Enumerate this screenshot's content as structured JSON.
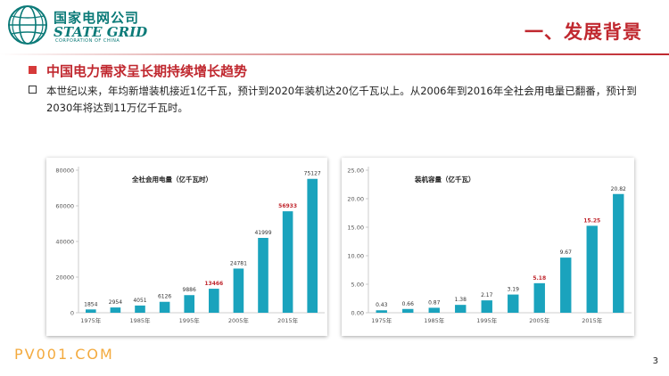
{
  "header": {
    "logo": {
      "cn": "国家电网公司",
      "en": "STATE GRID",
      "sub": "CORPORATION OF CHINA"
    },
    "title": "一、发展背景"
  },
  "section_title": "中国电力需求呈长期持续增长趋势",
  "bullet_text": "本世纪以来，年均新增装机接近1亿千瓦，预计到2020年装机达20亿千瓦以上。从2006年到2016年全社会用电量已翻番，预计到2030年将达到11万亿千瓦时。",
  "colors": {
    "bar": "#1aa3bd",
    "highlight_label": "#c0282f",
    "accent": "#c0282f",
    "brand": "#0b7a78"
  },
  "chart_data": [
    {
      "type": "bar",
      "title": "全社会用电量（亿千瓦时）",
      "categories": [
        "1975年",
        "1980年",
        "1985年",
        "1990年",
        "1995年",
        "2000年",
        "2005年",
        "2010年",
        "2015年",
        "2020年"
      ],
      "tick_labels_shown": [
        "1975年",
        "1985年",
        "1995年",
        "2005年",
        "2015年"
      ],
      "values": [
        1854,
        2954,
        4051,
        6126,
        9886,
        13466,
        24781,
        41999,
        56933,
        75127
      ],
      "data_labels": [
        "1854",
        "2954",
        "4051",
        "6126",
        "9886",
        "13466",
        "24781",
        "41999",
        "56933",
        "75127"
      ],
      "highlighted_labels": [
        5,
        8
      ],
      "ylim": [
        0,
        80000
      ],
      "yticks": [
        0,
        20000,
        40000,
        60000,
        80000
      ],
      "ytick_labels": [
        "0",
        "20000",
        "40000",
        "60000",
        "80000"
      ],
      "grid": false,
      "legend": "none"
    },
    {
      "type": "bar",
      "title": "装机容量（亿千瓦）",
      "categories": [
        "1975年",
        "1980年",
        "1985年",
        "1990年",
        "1995年",
        "2000年",
        "2005年",
        "2010年",
        "2015年",
        "2020年"
      ],
      "tick_labels_shown": [
        "1975年",
        "1985年",
        "1995年",
        "2005年",
        "2015年"
      ],
      "values": [
        0.43,
        0.66,
        0.87,
        1.38,
        2.17,
        3.19,
        5.18,
        9.67,
        15.25,
        20.82
      ],
      "data_labels": [
        "0.43",
        "0.66",
        "0.87",
        "1.38",
        "2.17",
        "3.19",
        "5.18",
        "9.67",
        "15.25",
        "20.82"
      ],
      "highlighted_labels": [
        6,
        8
      ],
      "ylim": [
        0,
        25
      ],
      "yticks": [
        0,
        5,
        10,
        15,
        20,
        25
      ],
      "ytick_labels": [
        "0.00",
        "5.00",
        "10.00",
        "15.00",
        "20.00",
        "25.00"
      ],
      "grid": false,
      "legend": "none"
    }
  ],
  "footer": {
    "brand": "PV001.COM",
    "page": "3"
  }
}
